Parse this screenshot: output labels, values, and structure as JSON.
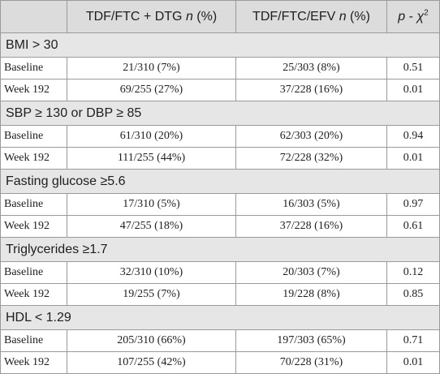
{
  "header": {
    "col1": "",
    "col2_prefix": "TDF/FTC + DTG ",
    "col2_n": "n",
    "col2_suffix": " (%)",
    "col3_prefix": "TDF/FTC/EFV ",
    "col3_n": "n",
    "col3_suffix": " (%)",
    "col4_p": "p",
    "col4_mid": " - ",
    "col4_chi": "χ",
    "col4_sup": "2"
  },
  "sections": [
    {
      "title": "BMI > 30",
      "rows": [
        {
          "label": "Baseline",
          "dtg": "21/310 (7%)",
          "efv": "25/303 (8%)",
          "p": "0.51"
        },
        {
          "label": "Week 192",
          "dtg": "69/255 (27%)",
          "efv": "37/228 (16%)",
          "p": "0.01"
        }
      ]
    },
    {
      "title": "SBP ≥ 130 or DBP ≥ 85",
      "rows": [
        {
          "label": "Baseline",
          "dtg": "61/310 (20%)",
          "efv": "62/303 (20%)",
          "p": "0.94"
        },
        {
          "label": "Week 192",
          "dtg": "111/255 (44%)",
          "efv": "72/228 (32%)",
          "p": "0.01"
        }
      ]
    },
    {
      "title": "Fasting glucose ≥5.6",
      "rows": [
        {
          "label": "Baseline",
          "dtg": "17/310 (5%)",
          "efv": "16/303 (5%)",
          "p": "0.97"
        },
        {
          "label": "Week 192",
          "dtg": "47/255 (18%)",
          "efv": "37/228 (16%)",
          "p": "0.61"
        }
      ]
    },
    {
      "title": "Triglycerides ≥1.7",
      "rows": [
        {
          "label": "Baseline",
          "dtg": "32/310 (10%)",
          "efv": "20/303 (7%)",
          "p": "0.12"
        },
        {
          "label": "Week 192",
          "dtg": "19/255 (7%)",
          "efv": "19/228 (8%)",
          "p": "0.85"
        }
      ]
    },
    {
      "title": "HDL < 1.29",
      "rows": [
        {
          "label": "Baseline",
          "dtg": "205/310 (66%)",
          "efv": "197/303 (65%)",
          "p": "0.71"
        },
        {
          "label": "Week 192",
          "dtg": "107/255 (42%)",
          "efv": "70/228 (31%)",
          "p": "0.01"
        }
      ]
    }
  ]
}
